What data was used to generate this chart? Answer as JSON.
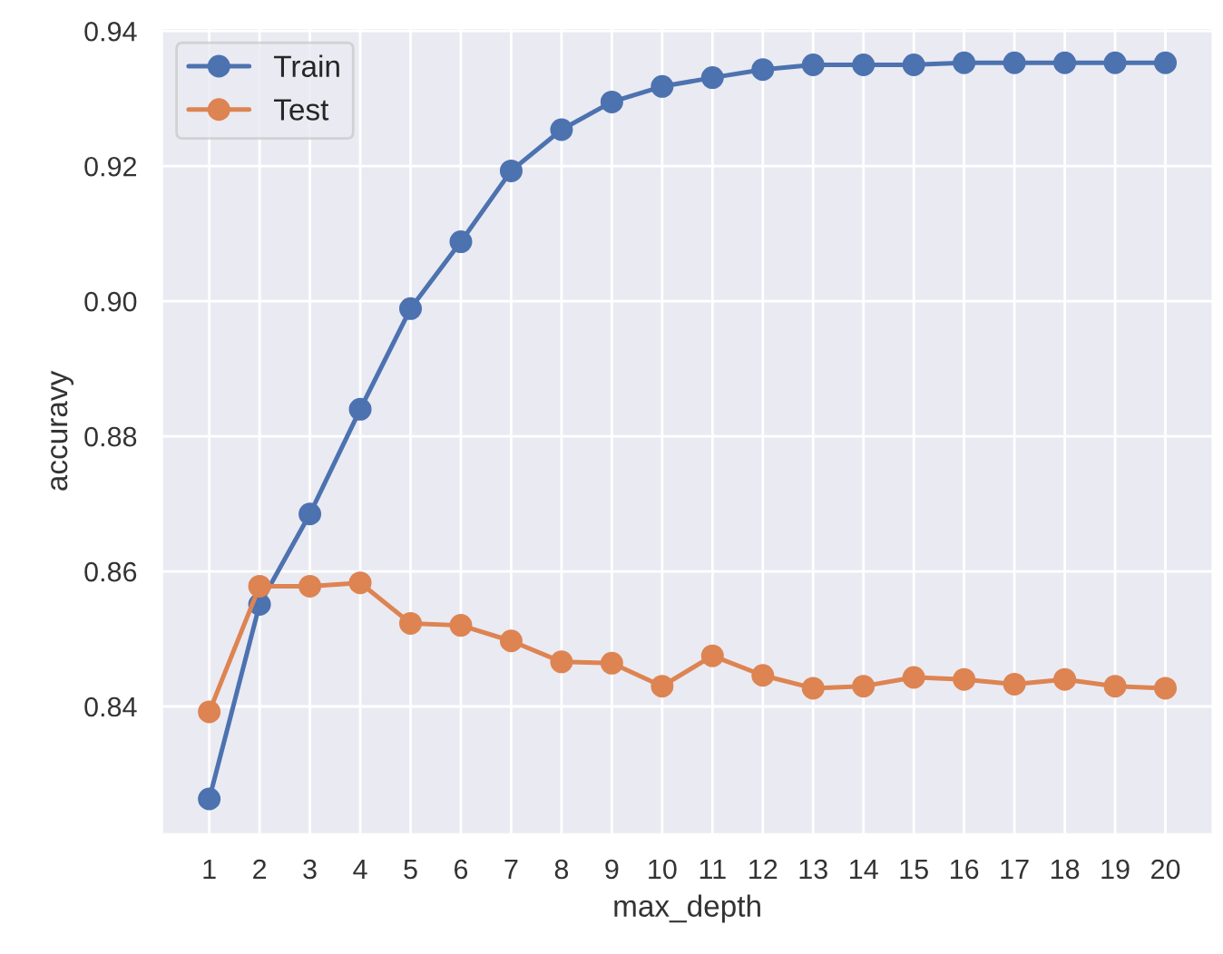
{
  "chart_data": {
    "type": "line",
    "xlabel": "max_depth",
    "ylabel": "accuravy",
    "x": [
      1,
      2,
      3,
      4,
      5,
      6,
      7,
      8,
      9,
      10,
      11,
      12,
      13,
      14,
      15,
      16,
      17,
      18,
      19,
      20
    ],
    "series": [
      {
        "name": "Train",
        "color": "#4c72b0",
        "values": [
          0.8263,
          0.8551,
          0.8685,
          0.884,
          0.8989,
          0.9088,
          0.9193,
          0.9254,
          0.9295,
          0.9318,
          0.9331,
          0.9343,
          0.935,
          0.935,
          0.935,
          0.9353,
          0.9353,
          0.9353,
          0.9353,
          0.9353
        ]
      },
      {
        "name": "Test",
        "color": "#dd8452",
        "values": [
          0.8392,
          0.8578,
          0.8578,
          0.8583,
          0.8523,
          0.852,
          0.8497,
          0.8466,
          0.8464,
          0.843,
          0.8475,
          0.8446,
          0.8427,
          0.843,
          0.8443,
          0.844,
          0.8433,
          0.844,
          0.843,
          0.8427
        ]
      }
    ],
    "xlim": [
      0.05,
      20.95
    ],
    "ylim": [
      0.821,
      0.9405
    ],
    "xticks": [
      1,
      2,
      3,
      4,
      5,
      6,
      7,
      8,
      9,
      10,
      11,
      12,
      13,
      14,
      15,
      16,
      17,
      18,
      19,
      20
    ],
    "yticks": [
      {
        "value": 0.84,
        "label": "0.84"
      },
      {
        "value": 0.86,
        "label": "0.86"
      },
      {
        "value": 0.88,
        "label": "0.88"
      },
      {
        "value": 0.9,
        "label": "0.90"
      },
      {
        "value": 0.92,
        "label": "0.92"
      },
      {
        "value": 0.94,
        "label": "0.94"
      }
    ],
    "grid": true,
    "legend": "top left",
    "marker": "circle",
    "line_style": "solid"
  }
}
